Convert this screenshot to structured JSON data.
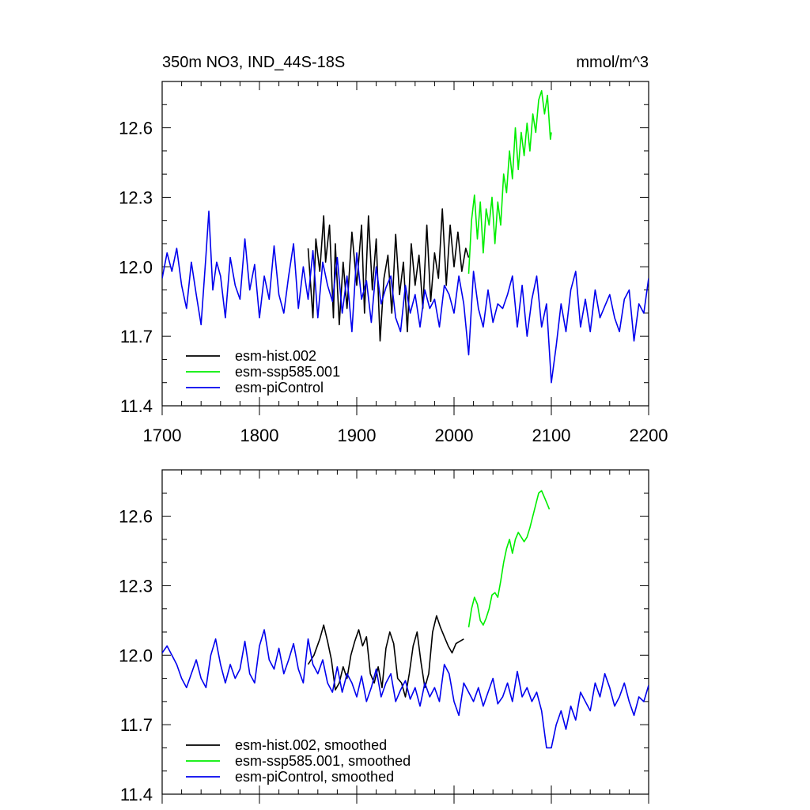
{
  "header": {
    "title": "350m NO3, IND_44S-18S",
    "units": "mmol/m^3"
  },
  "chart_data": [
    {
      "type": "line",
      "panel": "raw",
      "xlim": [
        1700,
        2200
      ],
      "ylim": [
        11.4,
        12.8
      ],
      "xticks": [
        1700,
        1800,
        1900,
        2000,
        2100,
        2200
      ],
      "xtick_labels": [
        "1700",
        "1800",
        "1900",
        "2000",
        "2100",
        "2200"
      ],
      "yticks": [
        11.4,
        11.7,
        12.0,
        12.3,
        12.6
      ],
      "ytick_labels": [
        "11.4",
        "11.7",
        "12.0",
        "12.3",
        "12.6"
      ],
      "grid": false,
      "legend_position": "bottom-left",
      "series": [
        {
          "name": "esm-hist.002",
          "color": "#000000",
          "x": [
            1850,
            1855,
            1858,
            1862,
            1866,
            1868,
            1872,
            1876,
            1878,
            1882,
            1886,
            1890,
            1895,
            1900,
            1905,
            1908,
            1912,
            1916,
            1920,
            1924,
            1928,
            1932,
            1936,
            1940,
            1944,
            1948,
            1952,
            1956,
            1960,
            1964,
            1968,
            1972,
            1976,
            1980,
            1984,
            1988,
            1992,
            1996,
            2000,
            2004,
            2008,
            2012,
            2015
          ],
          "y": [
            12.08,
            11.78,
            12.12,
            11.98,
            12.22,
            12.02,
            12.18,
            11.78,
            12.1,
            11.75,
            12.02,
            11.82,
            12.15,
            11.92,
            12.18,
            11.8,
            12.22,
            11.9,
            12.12,
            11.68,
            11.95,
            12.05,
            11.8,
            12.14,
            11.88,
            12.02,
            11.72,
            12.1,
            11.92,
            12.05,
            11.82,
            12.18,
            11.85,
            12.06,
            11.95,
            12.25,
            11.92,
            12.18,
            12.0,
            12.15,
            11.98,
            12.08,
            12.04
          ]
        },
        {
          "name": "esm-ssp585.001",
          "color": "#00ee00",
          "x": [
            2015,
            2018,
            2021,
            2024,
            2027,
            2030,
            2033,
            2036,
            2039,
            2042,
            2045,
            2048,
            2051,
            2054,
            2057,
            2060,
            2063,
            2066,
            2069,
            2072,
            2075,
            2078,
            2081,
            2084,
            2087,
            2090,
            2093,
            2096,
            2099,
            2100
          ],
          "y": [
            11.97,
            12.2,
            12.31,
            12.12,
            12.28,
            12.06,
            12.25,
            12.18,
            12.3,
            12.1,
            12.28,
            12.18,
            12.4,
            12.32,
            12.5,
            12.38,
            12.6,
            12.42,
            12.58,
            12.48,
            12.62,
            12.5,
            12.66,
            12.58,
            12.72,
            12.76,
            12.66,
            12.74,
            12.55,
            12.58
          ]
        },
        {
          "name": "esm-piControl",
          "color": "#0000ee",
          "x": [
            1700,
            1705,
            1710,
            1715,
            1720,
            1725,
            1730,
            1735,
            1740,
            1745,
            1748,
            1752,
            1756,
            1760,
            1765,
            1770,
            1775,
            1780,
            1785,
            1790,
            1795,
            1800,
            1805,
            1810,
            1815,
            1820,
            1825,
            1830,
            1835,
            1840,
            1845,
            1850,
            1855,
            1860,
            1865,
            1870,
            1875,
            1880,
            1885,
            1890,
            1895,
            1900,
            1905,
            1910,
            1915,
            1920,
            1925,
            1930,
            1935,
            1940,
            1945,
            1950,
            1955,
            1960,
            1965,
            1970,
            1975,
            1980,
            1985,
            1990,
            1995,
            2000,
            2005,
            2010,
            2015,
            2020,
            2025,
            2030,
            2035,
            2040,
            2045,
            2050,
            2055,
            2060,
            2065,
            2070,
            2075,
            2080,
            2085,
            2090,
            2095,
            2100,
            2105,
            2110,
            2115,
            2120,
            2125,
            2130,
            2135,
            2140,
            2145,
            2150,
            2155,
            2160,
            2165,
            2170,
            2175,
            2180,
            2185,
            2190,
            2195,
            2200
          ],
          "y": [
            11.95,
            12.06,
            11.98,
            12.08,
            11.92,
            11.82,
            12.02,
            11.88,
            11.75,
            12.05,
            12.24,
            11.9,
            12.02,
            11.96,
            11.78,
            12.04,
            11.92,
            11.86,
            12.12,
            11.9,
            12.01,
            11.78,
            11.96,
            11.86,
            12.09,
            11.88,
            11.8,
            11.96,
            12.1,
            11.82,
            12.0,
            11.86,
            12.07,
            11.78,
            12.02,
            11.92,
            11.85,
            12.04,
            11.8,
            11.96,
            11.72,
            12.06,
            11.86,
            11.94,
            11.76,
            12.0,
            11.84,
            11.91,
            11.96,
            11.78,
            11.72,
            11.92,
            11.8,
            11.88,
            11.74,
            11.9,
            11.82,
            11.86,
            11.74,
            11.92,
            11.88,
            11.8,
            11.96,
            11.84,
            11.62,
            11.98,
            11.82,
            11.74,
            11.9,
            11.76,
            11.84,
            11.82,
            11.88,
            11.96,
            11.74,
            11.92,
            11.7,
            11.86,
            11.96,
            11.74,
            11.84,
            11.5,
            11.66,
            11.84,
            11.72,
            11.9,
            11.98,
            11.74,
            11.86,
            11.72,
            11.9,
            11.78,
            11.83,
            11.88,
            11.78,
            11.72,
            11.86,
            11.9,
            11.68,
            11.84,
            11.8,
            11.95
          ]
        }
      ]
    },
    {
      "type": "line",
      "panel": "smoothed",
      "xlim": [
        1700,
        2200
      ],
      "ylim": [
        11.4,
        12.8
      ],
      "yticks": [
        11.4,
        11.7,
        12.0,
        12.3,
        12.6
      ],
      "ytick_labels": [
        "11.4",
        "11.7",
        "12.0",
        "12.3",
        "12.6"
      ],
      "grid": false,
      "legend_position": "bottom-left",
      "series": [
        {
          "name": "esm-hist.002, smoothed",
          "color": "#000000",
          "x": [
            1850,
            1856,
            1862,
            1866,
            1870,
            1874,
            1878,
            1882,
            1886,
            1890,
            1894,
            1898,
            1902,
            1906,
            1910,
            1914,
            1918,
            1922,
            1926,
            1930,
            1934,
            1938,
            1942,
            1946,
            1950,
            1954,
            1958,
            1962,
            1966,
            1970,
            1974,
            1978,
            1982,
            1986,
            1990,
            1994,
            1998,
            2002,
            2006,
            2010
          ],
          "y": [
            11.96,
            12.0,
            12.07,
            12.13,
            12.06,
            11.98,
            11.85,
            11.88,
            11.95,
            11.9,
            12.0,
            12.06,
            12.11,
            12.04,
            12.08,
            11.92,
            11.88,
            11.95,
            11.86,
            12.03,
            12.1,
            12.05,
            11.9,
            11.88,
            11.82,
            11.92,
            12.04,
            12.1,
            11.97,
            11.86,
            11.92,
            12.1,
            12.17,
            12.12,
            12.08,
            12.04,
            12.01,
            12.05,
            12.06,
            12.07
          ]
        },
        {
          "name": "esm-ssp585.001, smoothed",
          "color": "#00ee00",
          "x": [
            2015,
            2018,
            2021,
            2024,
            2027,
            2030,
            2033,
            2036,
            2039,
            2042,
            2045,
            2048,
            2051,
            2054,
            2057,
            2060,
            2063,
            2066,
            2069,
            2072,
            2075,
            2078,
            2081,
            2084,
            2087,
            2090,
            2093,
            2096,
            2098
          ],
          "y": [
            12.12,
            12.2,
            12.25,
            12.22,
            12.15,
            12.13,
            12.16,
            12.2,
            12.26,
            12.27,
            12.25,
            12.32,
            12.4,
            12.46,
            12.5,
            12.44,
            12.5,
            12.53,
            12.51,
            12.49,
            12.51,
            12.55,
            12.6,
            12.65,
            12.7,
            12.71,
            12.68,
            12.65,
            12.63
          ]
        },
        {
          "name": "esm-piControl, smoothed",
          "color": "#0000ee",
          "x": [
            1700,
            1705,
            1710,
            1715,
            1720,
            1725,
            1730,
            1735,
            1740,
            1745,
            1750,
            1755,
            1760,
            1765,
            1770,
            1775,
            1780,
            1785,
            1790,
            1795,
            1800,
            1805,
            1810,
            1815,
            1820,
            1825,
            1830,
            1835,
            1840,
            1845,
            1850,
            1855,
            1860,
            1865,
            1870,
            1875,
            1880,
            1885,
            1890,
            1895,
            1900,
            1905,
            1910,
            1915,
            1920,
            1925,
            1930,
            1935,
            1940,
            1945,
            1950,
            1955,
            1960,
            1965,
            1970,
            1975,
            1980,
            1985,
            1990,
            1995,
            2000,
            2005,
            2010,
            2015,
            2020,
            2025,
            2030,
            2035,
            2040,
            2045,
            2050,
            2055,
            2060,
            2065,
            2070,
            2075,
            2080,
            2085,
            2090,
            2095,
            2100,
            2105,
            2110,
            2115,
            2120,
            2125,
            2130,
            2135,
            2140,
            2145,
            2150,
            2155,
            2160,
            2165,
            2170,
            2175,
            2180,
            2185,
            2190,
            2195,
            2200
          ],
          "y": [
            12.01,
            12.04,
            12.0,
            11.96,
            11.9,
            11.86,
            11.92,
            11.98,
            11.9,
            11.86,
            12.0,
            12.07,
            11.96,
            11.88,
            11.96,
            11.9,
            11.94,
            12.06,
            11.92,
            11.88,
            12.04,
            12.11,
            11.98,
            11.94,
            12.03,
            11.92,
            11.98,
            12.05,
            11.94,
            11.88,
            12.07,
            11.96,
            11.92,
            11.98,
            11.88,
            11.84,
            11.95,
            11.84,
            11.92,
            11.88,
            11.82,
            11.91,
            11.8,
            11.86,
            11.94,
            11.82,
            11.88,
            11.92,
            11.8,
            11.85,
            11.89,
            11.81,
            11.86,
            11.78,
            11.88,
            11.82,
            11.86,
            11.8,
            11.96,
            11.92,
            11.8,
            11.74,
            11.88,
            11.84,
            11.8,
            11.86,
            11.78,
            11.84,
            11.9,
            11.79,
            11.82,
            11.88,
            11.8,
            11.93,
            11.82,
            11.86,
            11.8,
            11.84,
            11.76,
            11.6,
            11.6,
            11.7,
            11.76,
            11.68,
            11.78,
            11.72,
            11.84,
            11.8,
            11.76,
            11.88,
            11.82,
            11.92,
            11.86,
            11.78,
            11.82,
            11.88,
            11.8,
            11.74,
            11.82,
            11.8,
            11.87
          ]
        }
      ]
    }
  ]
}
